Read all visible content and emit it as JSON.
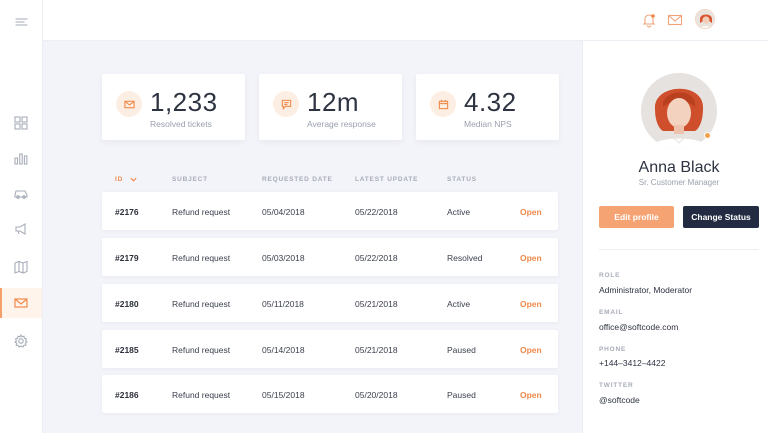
{
  "sidebar": {
    "items": [
      {
        "icon": "grid-icon"
      },
      {
        "icon": "bar-chart-icon"
      },
      {
        "icon": "car-icon"
      },
      {
        "icon": "megaphone-icon"
      },
      {
        "icon": "map-icon"
      },
      {
        "icon": "mail-icon",
        "active": true
      },
      {
        "icon": "gear-icon"
      }
    ]
  },
  "topbar": {
    "icons": [
      "bell-icon",
      "mail-icon",
      "avatar"
    ]
  },
  "stats": [
    {
      "value": "1,233",
      "label": "Resolved tickets",
      "icon": "mail-icon"
    },
    {
      "value": "12m",
      "label": "Average response",
      "icon": "chat-icon"
    },
    {
      "value": "4.32",
      "label": "Median NPS",
      "icon": "calendar-icon"
    }
  ],
  "table": {
    "headers": {
      "id": "ID",
      "subject": "SUBJECT",
      "requested": "REQUESTED DATE",
      "latest": "LATEST UPDATE",
      "status": "STATUS"
    },
    "rows": [
      {
        "id": "#2176",
        "subject": "Refund request",
        "requested": "05/04/2018",
        "latest": "05/22/2018",
        "status": "Active",
        "action": "Open"
      },
      {
        "id": "#2179",
        "subject": "Refund request",
        "requested": "05/03/2018",
        "latest": "05/22/2018",
        "status": "Resolved",
        "action": "Open"
      },
      {
        "id": "#2180",
        "subject": "Refund request",
        "requested": "05/11/2018",
        "latest": "05/21/2018",
        "status": "Active",
        "action": "Open"
      },
      {
        "id": "#2185",
        "subject": "Refund request",
        "requested": "05/14/2018",
        "latest": "05/21/2018",
        "status": "Paused",
        "action": "Open"
      },
      {
        "id": "#2186",
        "subject": "Refund request",
        "requested": "05/15/2018",
        "latest": "05/20/2018",
        "status": "Paused",
        "action": "Open"
      }
    ]
  },
  "profile": {
    "name": "Anna Black",
    "title": "Sr. Customer Manager",
    "edit_label": "Edit profile",
    "status_label": "Change Status",
    "role_label": "ROLE",
    "role_value": "Administrator, Moderator",
    "email_label": "EMAIL",
    "email_value": "office@softcode.com",
    "phone_label": "PHONE",
    "phone_value": "+144–3412–4422",
    "twitter_label": "TWITTER",
    "twitter_value": "@softcode"
  },
  "colors": {
    "accent": "#f08a4b",
    "dark_button": "#222b42",
    "background": "#f3f4f9"
  }
}
